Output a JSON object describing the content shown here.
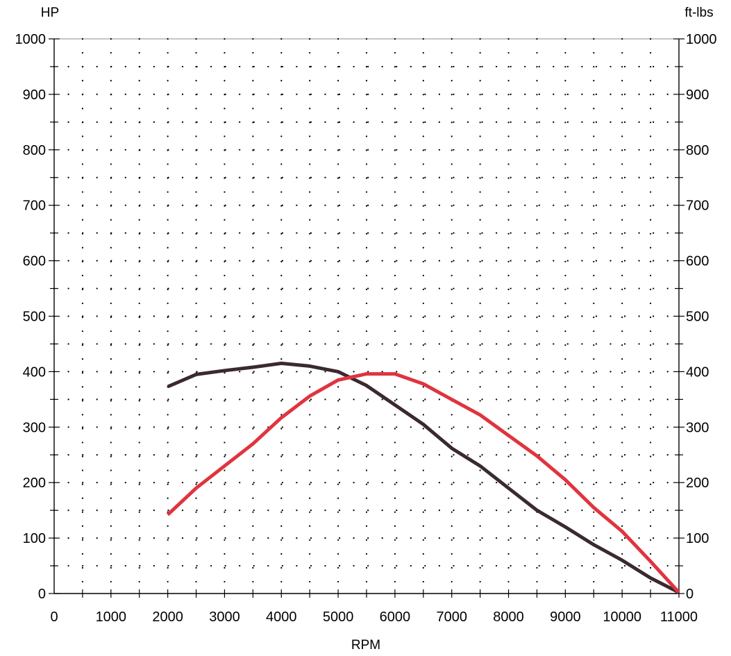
{
  "chart_data": {
    "type": "line",
    "xlabel": "RPM",
    "ylabel_left": "HP",
    "ylabel_right": "ft-lbs",
    "xlim": [
      0,
      11000
    ],
    "ylim_left": [
      0,
      1000
    ],
    "ylim_right": [
      0,
      1000
    ],
    "x_ticks": [
      "0",
      "1000",
      "2000",
      "3000",
      "4000",
      "5000",
      "6000",
      "7000",
      "8000",
      "9000",
      "10000",
      "11000"
    ],
    "y_ticks": [
      "0",
      "100",
      "200",
      "300",
      "400",
      "500",
      "600",
      "700",
      "800",
      "900",
      "1000"
    ],
    "grid": "dotted",
    "series": [
      {
        "color": "#3a2a30",
        "x": [
          2000,
          2500,
          3000,
          3500,
          4000,
          4500,
          5000,
          5500,
          6000,
          6500,
          7000,
          7500,
          8000,
          8500,
          9000,
          9500,
          10000,
          10500,
          11000
        ],
        "values": [
          373,
          395,
          402,
          408,
          415,
          410,
          400,
          375,
          340,
          305,
          262,
          230,
          190,
          150,
          120,
          88,
          60,
          28,
          2
        ]
      },
      {
        "color": "#e0343e",
        "x": [
          2000,
          2500,
          3000,
          3500,
          4000,
          4500,
          5000,
          5500,
          6000,
          6500,
          7000,
          7500,
          8000,
          8500,
          9000,
          9500,
          10000,
          10500,
          11000
        ],
        "values": [
          142,
          190,
          230,
          270,
          317,
          356,
          385,
          396,
          396,
          378,
          350,
          322,
          285,
          248,
          205,
          155,
          112,
          58,
          2
        ]
      }
    ]
  }
}
